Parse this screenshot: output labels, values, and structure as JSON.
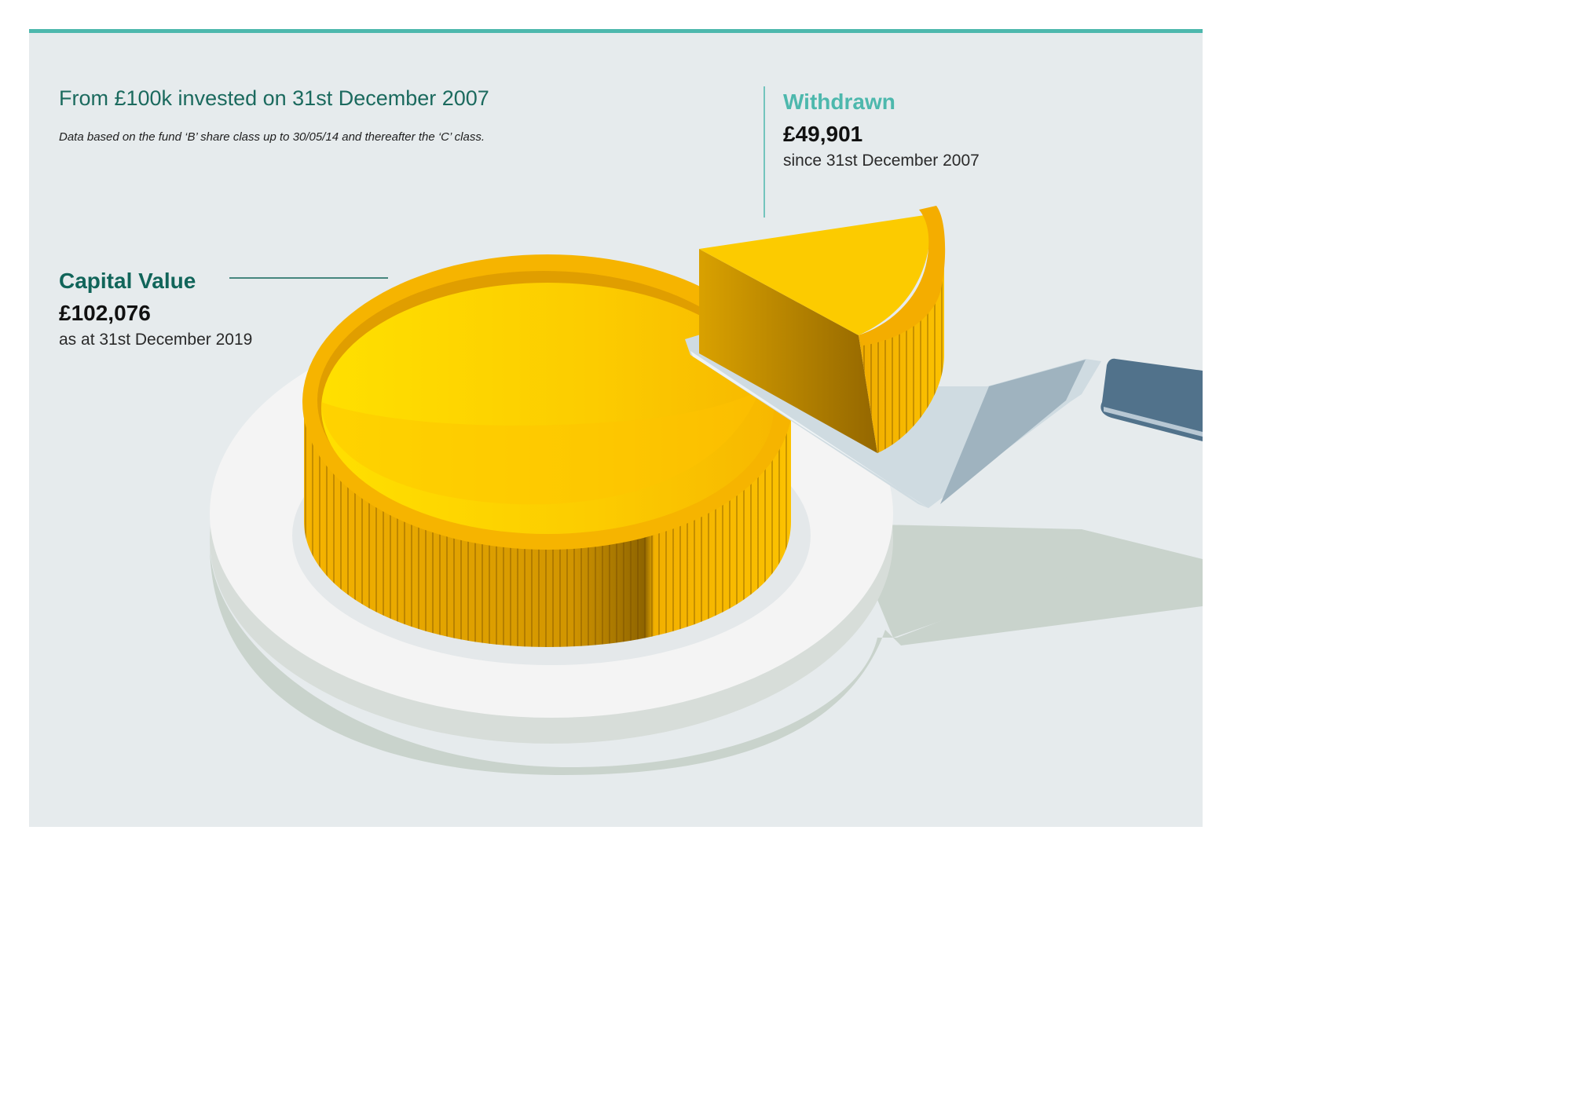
{
  "header": {
    "title": "From £100k invested on 31st December 2007",
    "footnote": "Data based on the fund ‘B’ share class up to 30/05/14 and thereafter the ‘C’ class."
  },
  "colors": {
    "accent_teal": "#4db8ad",
    "dark_teal": "#11655a",
    "gold": "#fcc200",
    "gold_dark": "#9a6d00",
    "plate": "#f4f4f4",
    "shadow": "#c9d3cc",
    "server_handle": "#51728b"
  },
  "chart_data": {
    "type": "pie",
    "title": "From £100k invested on 31st December 2007",
    "categories": [
      "Capital Value",
      "Withdrawn"
    ],
    "values": [
      102076,
      49901
    ],
    "slices": [
      {
        "label": "Capital Value",
        "value": 102076,
        "display_value": "£102,076",
        "note": "as at 31st December 2019",
        "color": "#fcc200"
      },
      {
        "label": "Withdrawn",
        "value": 49901,
        "display_value": "£49,901",
        "note": "since 31st December 2007",
        "color": "#fcc200"
      }
    ],
    "legend": "none"
  }
}
